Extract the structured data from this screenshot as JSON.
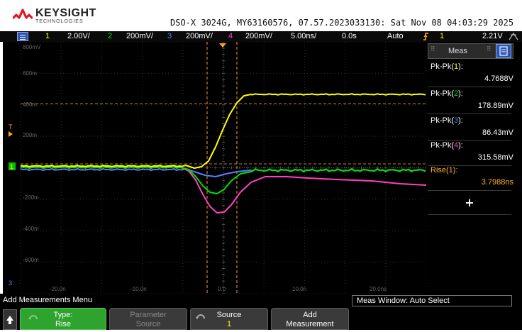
{
  "header": {
    "brand": "KEYSIGHT",
    "brand_sub": "TECHNOLOGIES",
    "info": "DSO-X 3024G, MY63160576, 07.57.2023033130: Sat Nov 08 04:03:29 2025"
  },
  "status_bar": {
    "ch1": {
      "num": "1",
      "scale": "2.00V/"
    },
    "ch2": {
      "num": "2",
      "scale": "200mV/"
    },
    "ch3": {
      "num": "3",
      "scale": "200mV/"
    },
    "ch4": {
      "num": "4",
      "scale": "200mV/"
    },
    "timebase": "5.00ns/",
    "delay": "0.0s",
    "mode": "Auto",
    "trigger_channel": "1",
    "trigger_level": "2.21V"
  },
  "grid": {
    "y_labels": [
      "800mV",
      "600m",
      "400m",
      "200m",
      "-200m",
      "-400m",
      "-600m"
    ],
    "x_labels": [
      "-20.0n",
      "-10.0n",
      "0.0",
      "10.0n",
      "20.0ns"
    ],
    "ch1_marker": "1",
    "trigger_marker": "T",
    "ref_marker": "3"
  },
  "measurements": {
    "title": "Meas",
    "items": [
      {
        "label": "Pk-Pk(",
        "ch": "1",
        "close": "):",
        "value": "4.7688V",
        "ch_color": "#ffff00",
        "label_color": "#ffffff",
        "value_color": "#ffffff"
      },
      {
        "label": "Pk-Pk(",
        "ch": "2",
        "close": "):",
        "value": "178.89mV",
        "ch_color": "#00e000",
        "label_color": "#ffffff",
        "value_color": "#ffffff"
      },
      {
        "label": "Pk-Pk(",
        "ch": "3",
        "close": "):",
        "value": "86.43mV",
        "ch_color": "#5b7bff",
        "label_color": "#ffffff",
        "value_color": "#ffffff"
      },
      {
        "label": "Pk-Pk(",
        "ch": "4",
        "close": "):",
        "value": "315.58mV",
        "ch_color": "#ff40c0",
        "label_color": "#ffffff",
        "value_color": "#ffffff"
      },
      {
        "label": "Rise(",
        "ch": "1",
        "close": "):",
        "value": "3.7988ns",
        "ch_color": "#ffb020",
        "label_color": "#ffb020",
        "value_color": "#ffb020"
      }
    ],
    "add_symbol": "+"
  },
  "bottom": {
    "menu_title": "Add Measurements Menu",
    "meas_window": "Meas Window: Auto Select",
    "softkeys": [
      {
        "label": "Type:",
        "value": "Rise"
      },
      {
        "label": "Parameter",
        "value": "Source"
      },
      {
        "label": "Source",
        "value": "1"
      },
      {
        "label": "Add",
        "value": "Measurement"
      }
    ]
  },
  "colors": {
    "ch1": "#ffff00",
    "ch2": "#00e000",
    "ch3": "#5b7bff",
    "ch4": "#ff40c0",
    "trigger": "#ffb020",
    "softkey_active": "#2ea32e"
  }
}
